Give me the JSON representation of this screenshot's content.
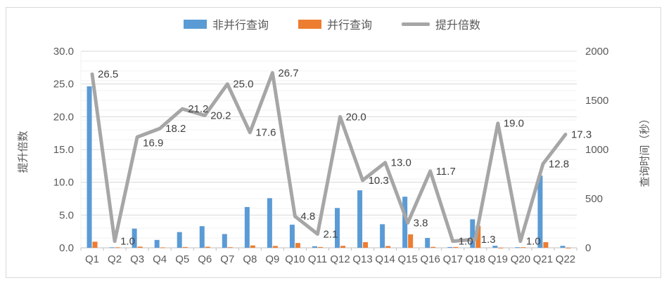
{
  "chart_data": {
    "type": "combo-bar-line",
    "title": "",
    "categories": [
      "Q1",
      "Q2",
      "Q3",
      "Q4",
      "Q5",
      "Q6",
      "Q7",
      "Q8",
      "Q9",
      "Q10",
      "Q11",
      "Q12",
      "Q13",
      "Q14",
      "Q15",
      "Q16",
      "Q17",
      "Q18",
      "Q19",
      "Q20",
      "Q21",
      "Q22"
    ],
    "series": [
      {
        "name": "非并行查询",
        "type": "bar",
        "axis": "right",
        "color": "#5B9BD5",
        "values": [
          1643,
          5,
          195,
          80,
          160,
          220,
          140,
          415,
          505,
          235,
          16,
          405,
          585,
          240,
          520,
          100,
          8,
          290,
          21,
          6,
          735,
          20
        ]
      },
      {
        "name": "并行查询",
        "type": "bar",
        "axis": "right",
        "color": "#ED7D31",
        "values": [
          62,
          5,
          12,
          4,
          8,
          11,
          6,
          24,
          19,
          49,
          8,
          20,
          57,
          18,
          137,
          9,
          8,
          223,
          1,
          6,
          57,
          1
        ]
      },
      {
        "name": "提升倍数",
        "type": "line",
        "axis": "left",
        "color": "#A6A6A6",
        "values": [
          26.5,
          1.0,
          16.9,
          18.2,
          21.2,
          20.2,
          25.0,
          17.6,
          26.7,
          4.8,
          2.1,
          20.0,
          10.3,
          13.0,
          3.8,
          11.7,
          1.0,
          1.3,
          19.0,
          1.0,
          12.8,
          17.3
        ],
        "data_labels": [
          "26.5",
          "1.0",
          "16.9",
          "18.2",
          "21.2",
          "20.2",
          "25.0",
          "17.6",
          "26.7",
          "4.8",
          "2.1",
          "20.0",
          "10.3",
          "13.0",
          "3.8",
          "11.7",
          "1.0",
          "1.3",
          "19.0",
          "1.0",
          "12.8",
          "17.3"
        ]
      }
    ],
    "left_axis": {
      "title": "提升倍数",
      "min": 0,
      "max": 30,
      "tick_labels": [
        "0.0",
        "5.0",
        "10.0",
        "15.0",
        "20.0",
        "25.0",
        "30.0"
      ]
    },
    "right_axis": {
      "title": "查询时间（秒）",
      "min": 0,
      "max": 2000,
      "tick_labels": [
        "0",
        "500",
        "1000",
        "1500",
        "2000"
      ]
    },
    "legend_position": "top",
    "grid": true,
    "colors": {
      "grid_major": "#D9D9D9",
      "grid_minor": "#F2F2F2",
      "axis_line": "#BFBFBF",
      "tick_text": "#595959",
      "data_label": "#404040",
      "frame_border": "#D9D9D9"
    }
  }
}
